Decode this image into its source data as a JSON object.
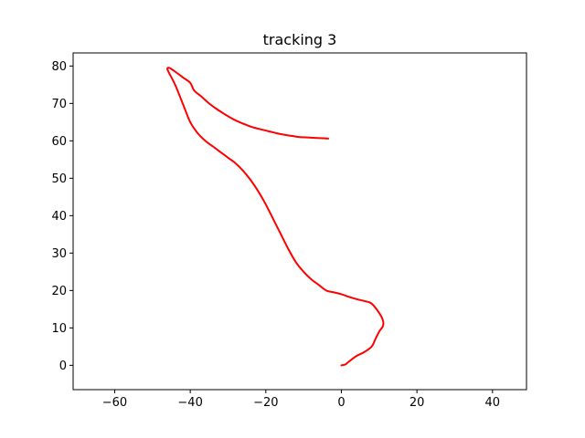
{
  "chart_data": {
    "type": "line",
    "title": "tracking 3",
    "xlabel": "",
    "ylabel": "",
    "xlim": [
      -71,
      49
    ],
    "ylim": [
      -6.5,
      83.5
    ],
    "xticks": [
      -60,
      -40,
      -20,
      0,
      20,
      40
    ],
    "yticks": [
      0,
      10,
      20,
      30,
      40,
      50,
      60,
      70,
      80
    ],
    "grid": false,
    "series": [
      {
        "color": "#ff0000",
        "x": [
          0,
          1,
          2,
          4,
          6,
          8,
          9,
          10,
          11,
          11,
          10,
          8,
          6,
          4,
          2,
          0,
          -2,
          -4,
          -6,
          -8,
          -10,
          -12,
          -14,
          -16,
          -18,
          -20,
          -22,
          -24,
          -26,
          -28,
          -30,
          -32,
          -34,
          -36,
          -38,
          -40,
          -42,
          -44,
          -46,
          -45.5,
          -45,
          -44,
          -42,
          -40,
          -39,
          -37,
          -35,
          -33,
          -31,
          -29,
          -27,
          -25,
          -23,
          -21,
          -19,
          -17,
          -15,
          -13,
          -11,
          -9,
          -7,
          -5,
          -3.5
        ],
        "y": [
          0,
          0.2,
          1,
          2.5,
          3.5,
          5,
          7,
          9,
          10.5,
          12,
          14,
          16.5,
          17.2,
          17.7,
          18.3,
          19,
          19.5,
          20,
          21.5,
          23,
          25,
          27.5,
          31,
          35,
          39,
          43,
          46.5,
          49.5,
          52,
          54,
          55.5,
          57,
          58.5,
          60,
          62,
          65,
          70,
          75,
          79,
          79.5,
          79.2,
          78.5,
          77,
          75.5,
          73.5,
          71.8,
          70,
          68.5,
          67.2,
          66,
          65,
          64.2,
          63.5,
          63,
          62.5,
          62,
          61.6,
          61.3,
          61,
          60.9,
          60.8,
          60.7,
          60.6
        ]
      }
    ]
  }
}
